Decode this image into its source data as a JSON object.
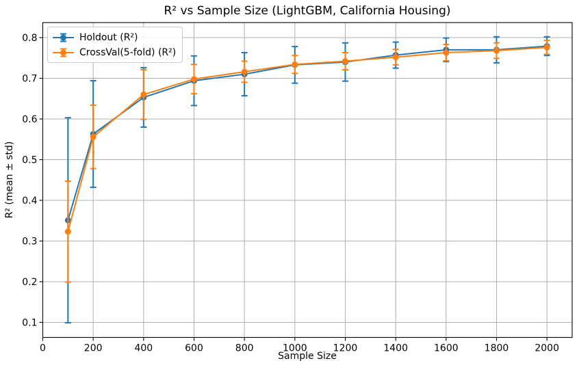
{
  "chart_data": {
    "type": "line",
    "title": "R² vs Sample Size (LightGBM, California Housing)",
    "xlabel": "Sample Size",
    "ylabel": "R² (mean ± std)",
    "x": [
      100,
      200,
      400,
      600,
      800,
      1000,
      1200,
      1400,
      1600,
      1800,
      2000
    ],
    "series": [
      {
        "name": "Holdout (R²)",
        "slug": "holdout",
        "color": "#1f77b4",
        "mean": [
          0.351,
          0.563,
          0.653,
          0.694,
          0.71,
          0.733,
          0.74,
          0.757,
          0.77,
          0.77,
          0.779
        ],
        "std": [
          0.252,
          0.131,
          0.073,
          0.061,
          0.053,
          0.045,
          0.047,
          0.032,
          0.029,
          0.032,
          0.023
        ]
      },
      {
        "name": "CrossVal(5-fold) (R²)",
        "slug": "crossval",
        "color": "#ff7f0e",
        "mean": [
          0.323,
          0.556,
          0.66,
          0.698,
          0.716,
          0.734,
          0.742,
          0.752,
          0.763,
          0.768,
          0.776
        ],
        "std": [
          0.124,
          0.078,
          0.061,
          0.036,
          0.026,
          0.022,
          0.021,
          0.019,
          0.02,
          0.019,
          0.017
        ]
      }
    ],
    "xlim": [
      0,
      2100
    ],
    "ylim": [
      0.063,
      0.837
    ],
    "x_ticks": [
      0,
      200,
      400,
      600,
      800,
      1000,
      1200,
      1400,
      1600,
      1800,
      2000
    ],
    "y_ticks": [
      0.1,
      0.2,
      0.3,
      0.4,
      0.5,
      0.6,
      0.7,
      0.8
    ],
    "grid": true,
    "grid_color": "#b0b0b0",
    "axis_color": "#000000",
    "background": "#ffffff",
    "legend_position": "upper left",
    "errorbar_capsize": 4.5,
    "marker": "o"
  }
}
